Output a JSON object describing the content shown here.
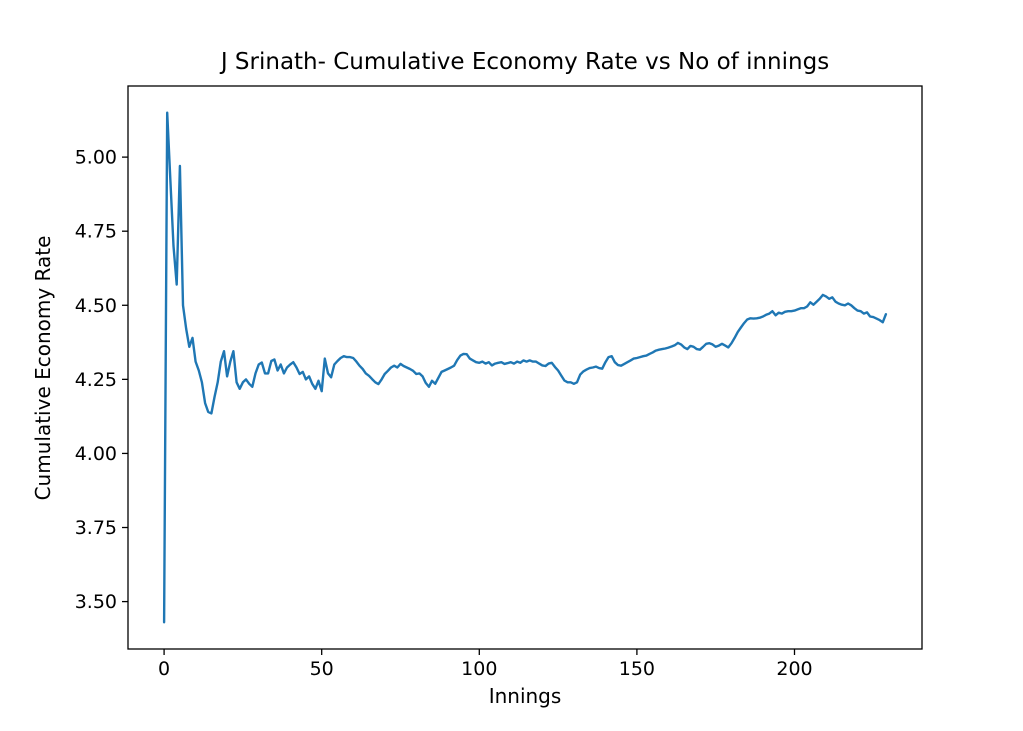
{
  "figure": {
    "background": "#ffffff",
    "frame_color": "#000000",
    "text_color": "#000000"
  },
  "chart_data": {
    "type": "line",
    "title": "J Srinath- Cumulative Economy Rate vs No of innings",
    "xlabel": "Innings",
    "ylabel": "Cumulative Economy Rate",
    "xlim": [
      -11.45,
      240.45
    ],
    "ylim": [
      3.34,
      5.24
    ],
    "x_ticks": [
      "0",
      "50",
      "100",
      "150",
      "200"
    ],
    "y_ticks": [
      "3.50",
      "3.75",
      "4.00",
      "4.25",
      "4.50",
      "4.75",
      "5.00"
    ],
    "grid": false,
    "legend": "none",
    "line_color": "#1f77b4",
    "line_width": 2.4,
    "series": [
      {
        "name": "Cumulative Economy Rate",
        "x_start": 0,
        "x_step": 1,
        "values": [
          3.43,
          5.15,
          4.92,
          4.7,
          4.57,
          4.97,
          4.5,
          4.42,
          4.36,
          4.39,
          4.31,
          4.28,
          4.24,
          4.17,
          4.14,
          4.135,
          4.19,
          4.24,
          4.31,
          4.345,
          4.26,
          4.31,
          4.345,
          4.24,
          4.218,
          4.24,
          4.25,
          4.235,
          4.225,
          4.27,
          4.3,
          4.307,
          4.27,
          4.27,
          4.312,
          4.317,
          4.28,
          4.3,
          4.27,
          4.29,
          4.3,
          4.308,
          4.29,
          4.268,
          4.275,
          4.25,
          4.26,
          4.235,
          4.218,
          4.245,
          4.21,
          4.32,
          4.27,
          4.257,
          4.3,
          4.312,
          4.322,
          4.328,
          4.325,
          4.325,
          4.322,
          4.31,
          4.296,
          4.285,
          4.27,
          4.262,
          4.251,
          4.24,
          4.234,
          4.25,
          4.268,
          4.279,
          4.29,
          4.296,
          4.29,
          4.302,
          4.295,
          4.29,
          4.285,
          4.279,
          4.268,
          4.27,
          4.26,
          4.238,
          4.225,
          4.245,
          4.235,
          4.255,
          4.275,
          4.28,
          4.285,
          4.29,
          4.296,
          4.315,
          4.33,
          4.336,
          4.335,
          4.32,
          4.314,
          4.308,
          4.306,
          4.31,
          4.303,
          4.308,
          4.297,
          4.303,
          4.306,
          4.308,
          4.302,
          4.305,
          4.308,
          4.303,
          4.31,
          4.306,
          4.314,
          4.31,
          4.314,
          4.31,
          4.31,
          4.303,
          4.297,
          4.295,
          4.303,
          4.306,
          4.292,
          4.28,
          4.263,
          4.246,
          4.24,
          4.24,
          4.235,
          4.24,
          4.266,
          4.277,
          4.283,
          4.288,
          4.29,
          4.293,
          4.288,
          4.286,
          4.308,
          4.325,
          4.328,
          4.308,
          4.298,
          4.296,
          4.302,
          4.308,
          4.314,
          4.32,
          4.322,
          4.325,
          4.328,
          4.33,
          4.336,
          4.341,
          4.347,
          4.35,
          4.352,
          4.354,
          4.357,
          4.361,
          4.365,
          4.373,
          4.368,
          4.358,
          4.352,
          4.363,
          4.36,
          4.352,
          4.35,
          4.36,
          4.37,
          4.372,
          4.368,
          4.36,
          4.364,
          4.37,
          4.364,
          4.358,
          4.372,
          4.39,
          4.41,
          4.425,
          4.44,
          4.452,
          4.456,
          4.455,
          4.456,
          4.458,
          4.462,
          4.468,
          4.472,
          4.48,
          4.466,
          4.475,
          4.472,
          4.478,
          4.48,
          4.48,
          4.482,
          4.486,
          4.49,
          4.49,
          4.496,
          4.51,
          4.502,
          4.512,
          4.522,
          4.535,
          4.53,
          4.522,
          4.527,
          4.512,
          4.506,
          4.502,
          4.5,
          4.506,
          4.5,
          4.49,
          4.482,
          4.48,
          4.472,
          4.476,
          4.462,
          4.46,
          4.455,
          4.45,
          4.443,
          4.47
        ]
      }
    ]
  }
}
